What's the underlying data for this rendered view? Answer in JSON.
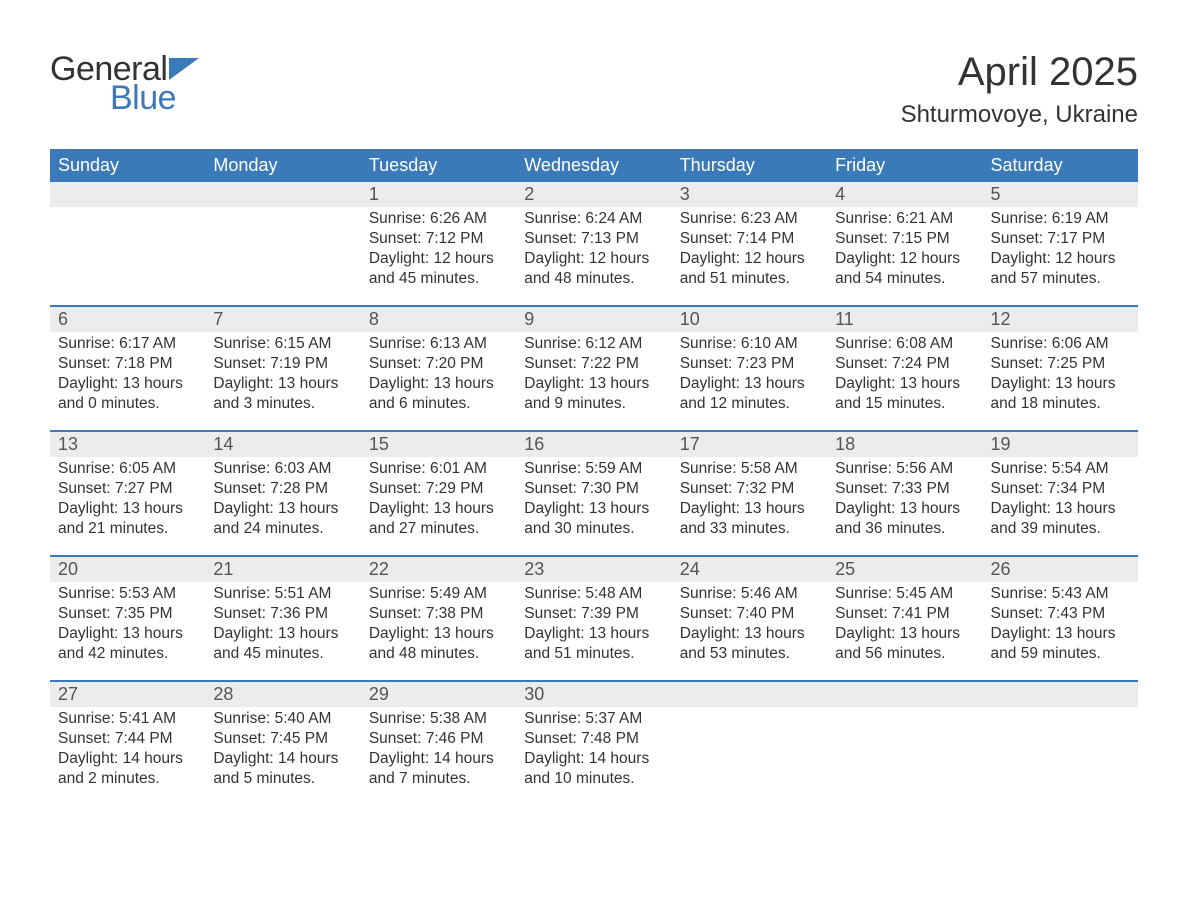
{
  "logo": {
    "word1": "General",
    "word2": "Blue",
    "accent_color": "#3b7ab8",
    "text_color": "#333333"
  },
  "title": "April 2025",
  "subtitle": "Shturmovoye, Ukraine",
  "header_bg": "#3b7ab8",
  "header_text_color": "#ffffff",
  "daynum_bg": "#ececec",
  "week_border_color": "#3b7ab8",
  "day_headers": [
    "Sunday",
    "Monday",
    "Tuesday",
    "Wednesday",
    "Thursday",
    "Friday",
    "Saturday"
  ],
  "weeks": [
    [
      {
        "n": "",
        "sunrise": "",
        "sunset": "",
        "daylight": ""
      },
      {
        "n": "",
        "sunrise": "",
        "sunset": "",
        "daylight": ""
      },
      {
        "n": "1",
        "sunrise": "Sunrise: 6:26 AM",
        "sunset": "Sunset: 7:12 PM",
        "daylight": "Daylight: 12 hours and 45 minutes."
      },
      {
        "n": "2",
        "sunrise": "Sunrise: 6:24 AM",
        "sunset": "Sunset: 7:13 PM",
        "daylight": "Daylight: 12 hours and 48 minutes."
      },
      {
        "n": "3",
        "sunrise": "Sunrise: 6:23 AM",
        "sunset": "Sunset: 7:14 PM",
        "daylight": "Daylight: 12 hours and 51 minutes."
      },
      {
        "n": "4",
        "sunrise": "Sunrise: 6:21 AM",
        "sunset": "Sunset: 7:15 PM",
        "daylight": "Daylight: 12 hours and 54 minutes."
      },
      {
        "n": "5",
        "sunrise": "Sunrise: 6:19 AM",
        "sunset": "Sunset: 7:17 PM",
        "daylight": "Daylight: 12 hours and 57 minutes."
      }
    ],
    [
      {
        "n": "6",
        "sunrise": "Sunrise: 6:17 AM",
        "sunset": "Sunset: 7:18 PM",
        "daylight": "Daylight: 13 hours and 0 minutes."
      },
      {
        "n": "7",
        "sunrise": "Sunrise: 6:15 AM",
        "sunset": "Sunset: 7:19 PM",
        "daylight": "Daylight: 13 hours and 3 minutes."
      },
      {
        "n": "8",
        "sunrise": "Sunrise: 6:13 AM",
        "sunset": "Sunset: 7:20 PM",
        "daylight": "Daylight: 13 hours and 6 minutes."
      },
      {
        "n": "9",
        "sunrise": "Sunrise: 6:12 AM",
        "sunset": "Sunset: 7:22 PM",
        "daylight": "Daylight: 13 hours and 9 minutes."
      },
      {
        "n": "10",
        "sunrise": "Sunrise: 6:10 AM",
        "sunset": "Sunset: 7:23 PM",
        "daylight": "Daylight: 13 hours and 12 minutes."
      },
      {
        "n": "11",
        "sunrise": "Sunrise: 6:08 AM",
        "sunset": "Sunset: 7:24 PM",
        "daylight": "Daylight: 13 hours and 15 minutes."
      },
      {
        "n": "12",
        "sunrise": "Sunrise: 6:06 AM",
        "sunset": "Sunset: 7:25 PM",
        "daylight": "Daylight: 13 hours and 18 minutes."
      }
    ],
    [
      {
        "n": "13",
        "sunrise": "Sunrise: 6:05 AM",
        "sunset": "Sunset: 7:27 PM",
        "daylight": "Daylight: 13 hours and 21 minutes."
      },
      {
        "n": "14",
        "sunrise": "Sunrise: 6:03 AM",
        "sunset": "Sunset: 7:28 PM",
        "daylight": "Daylight: 13 hours and 24 minutes."
      },
      {
        "n": "15",
        "sunrise": "Sunrise: 6:01 AM",
        "sunset": "Sunset: 7:29 PM",
        "daylight": "Daylight: 13 hours and 27 minutes."
      },
      {
        "n": "16",
        "sunrise": "Sunrise: 5:59 AM",
        "sunset": "Sunset: 7:30 PM",
        "daylight": "Daylight: 13 hours and 30 minutes."
      },
      {
        "n": "17",
        "sunrise": "Sunrise: 5:58 AM",
        "sunset": "Sunset: 7:32 PM",
        "daylight": "Daylight: 13 hours and 33 minutes."
      },
      {
        "n": "18",
        "sunrise": "Sunrise: 5:56 AM",
        "sunset": "Sunset: 7:33 PM",
        "daylight": "Daylight: 13 hours and 36 minutes."
      },
      {
        "n": "19",
        "sunrise": "Sunrise: 5:54 AM",
        "sunset": "Sunset: 7:34 PM",
        "daylight": "Daylight: 13 hours and 39 minutes."
      }
    ],
    [
      {
        "n": "20",
        "sunrise": "Sunrise: 5:53 AM",
        "sunset": "Sunset: 7:35 PM",
        "daylight": "Daylight: 13 hours and 42 minutes."
      },
      {
        "n": "21",
        "sunrise": "Sunrise: 5:51 AM",
        "sunset": "Sunset: 7:36 PM",
        "daylight": "Daylight: 13 hours and 45 minutes."
      },
      {
        "n": "22",
        "sunrise": "Sunrise: 5:49 AM",
        "sunset": "Sunset: 7:38 PM",
        "daylight": "Daylight: 13 hours and 48 minutes."
      },
      {
        "n": "23",
        "sunrise": "Sunrise: 5:48 AM",
        "sunset": "Sunset: 7:39 PM",
        "daylight": "Daylight: 13 hours and 51 minutes."
      },
      {
        "n": "24",
        "sunrise": "Sunrise: 5:46 AM",
        "sunset": "Sunset: 7:40 PM",
        "daylight": "Daylight: 13 hours and 53 minutes."
      },
      {
        "n": "25",
        "sunrise": "Sunrise: 5:45 AM",
        "sunset": "Sunset: 7:41 PM",
        "daylight": "Daylight: 13 hours and 56 minutes."
      },
      {
        "n": "26",
        "sunrise": "Sunrise: 5:43 AM",
        "sunset": "Sunset: 7:43 PM",
        "daylight": "Daylight: 13 hours and 59 minutes."
      }
    ],
    [
      {
        "n": "27",
        "sunrise": "Sunrise: 5:41 AM",
        "sunset": "Sunset: 7:44 PM",
        "daylight": "Daylight: 14 hours and 2 minutes."
      },
      {
        "n": "28",
        "sunrise": "Sunrise: 5:40 AM",
        "sunset": "Sunset: 7:45 PM",
        "daylight": "Daylight: 14 hours and 5 minutes."
      },
      {
        "n": "29",
        "sunrise": "Sunrise: 5:38 AM",
        "sunset": "Sunset: 7:46 PM",
        "daylight": "Daylight: 14 hours and 7 minutes."
      },
      {
        "n": "30",
        "sunrise": "Sunrise: 5:37 AM",
        "sunset": "Sunset: 7:48 PM",
        "daylight": "Daylight: 14 hours and 10 minutes."
      },
      {
        "n": "",
        "sunrise": "",
        "sunset": "",
        "daylight": ""
      },
      {
        "n": "",
        "sunrise": "",
        "sunset": "",
        "daylight": ""
      },
      {
        "n": "",
        "sunrise": "",
        "sunset": "",
        "daylight": ""
      }
    ]
  ]
}
